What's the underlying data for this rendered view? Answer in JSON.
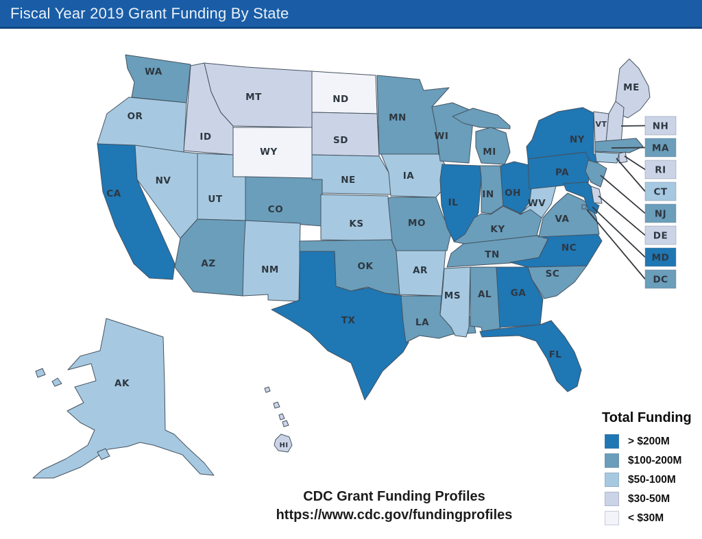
{
  "title_bar": {
    "text": "Fiscal Year 2019 Grant Funding By State"
  },
  "legend": {
    "title": "Total Funding",
    "items": [
      {
        "label": "> $200M",
        "color": "#1F77B4"
      },
      {
        "label": "$100-200M",
        "color": "#6A9EBB"
      },
      {
        "label": "$50-100M",
        "color": "#A6C9E1"
      },
      {
        "label": "$30-50M",
        "color": "#CBD4E7"
      },
      {
        "label": "< $30M",
        "color": "#F2F4FA"
      }
    ]
  },
  "caption": {
    "line1": "CDC Grant Funding Profiles",
    "line2": "https://www.cdc.gov/fundingprofiles"
  },
  "map": {
    "callouts": [
      "NH",
      "MA",
      "RI",
      "CT",
      "NJ",
      "DE",
      "MD",
      "DC"
    ],
    "outline_color": "#45525F",
    "callout_line_color": "#33383D",
    "label_color": "#2E3740"
  },
  "chart_data": {
    "type": "heatmap",
    "subtype": "us-state-choropleth",
    "title": "Fiscal Year 2019 Grant Funding By State",
    "legend_title": "Total Funding",
    "legend_position": "bottom-right",
    "categories": [
      "> $200M",
      "$100-200M",
      "$50-100M",
      "$30-50M",
      "< $30M"
    ],
    "states": {
      "WA": "$100-200M",
      "OR": "$50-100M",
      "CA": "> $200M",
      "NV": "$50-100M",
      "ID": "$30-50M",
      "MT": "$30-50M",
      "WY": "< $30M",
      "UT": "$50-100M",
      "CO": "$100-200M",
      "AZ": "$100-200M",
      "NM": "$50-100M",
      "ND": "< $30M",
      "SD": "$30-50M",
      "NE": "$50-100M",
      "KS": "$50-100M",
      "OK": "$100-200M",
      "TX": "> $200M",
      "MN": "$100-200M",
      "IA": "$50-100M",
      "MO": "$100-200M",
      "AR": "$50-100M",
      "LA": "$100-200M",
      "WI": "$100-200M",
      "IL": "> $200M",
      "MI": "$100-200M",
      "IN": "$100-200M",
      "OH": "> $200M",
      "KY": "$100-200M",
      "TN": "$100-200M",
      "MS": "$50-100M",
      "AL": "$100-200M",
      "GA": "> $200M",
      "FL": "> $200M",
      "SC": "$100-200M",
      "NC": "> $200M",
      "VA": "$100-200M",
      "WV": "$50-100M",
      "PA": "> $200M",
      "NY": "> $200M",
      "ME": "$30-50M",
      "VT": "$30-50M",
      "NH": "$30-50M",
      "MA": "$100-200M",
      "RI": "$30-50M",
      "CT": "$50-100M",
      "NJ": "$100-200M",
      "DE": "$30-50M",
      "MD": "> $200M",
      "DC": "$100-200M",
      "AK": "$50-100M",
      "HI": "$30-50M"
    }
  }
}
